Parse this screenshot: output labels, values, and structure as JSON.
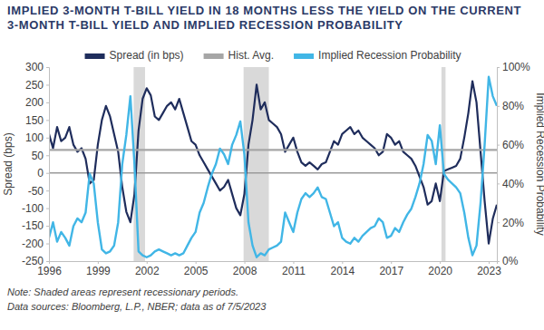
{
  "chart_data": {
    "type": "line",
    "title": "IMPLIED 3-MONTH T-BILL YIELD IN 18 MONTHS LESS THE YIELD ON THE CURRENT 3-MONTH T-BILL YIELD AND IMPLIED RECESSION PROBABILITY",
    "y_label": "Spread (bps)",
    "y2_label": "Implied Recession Probability",
    "notes": [
      "Note: Shaded areas represent recessionary periods.",
      "Data sources: Bloomberg, L.P., NBER; data as of 7/5/2023"
    ],
    "legend": "top",
    "grid": false,
    "x": [
      1996,
      1996.25,
      1996.5,
      1996.75,
      1997,
      1997.25,
      1997.5,
      1997.75,
      1998,
      1998.25,
      1998.5,
      1998.75,
      1999,
      1999.25,
      1999.5,
      1999.75,
      2000,
      2000.25,
      2000.5,
      2000.75,
      2001,
      2001.25,
      2001.5,
      2001.75,
      2002,
      2002.25,
      2002.5,
      2002.75,
      2003,
      2003.25,
      2003.5,
      2003.75,
      2004,
      2004.25,
      2004.5,
      2004.75,
      2005,
      2005.25,
      2005.5,
      2005.75,
      2006,
      2006.25,
      2006.5,
      2006.75,
      2007,
      2007.25,
      2007.5,
      2007.75,
      2008,
      2008.25,
      2008.5,
      2008.75,
      2009,
      2009.25,
      2009.5,
      2009.75,
      2010,
      2010.25,
      2010.5,
      2010.75,
      2011,
      2011.25,
      2011.5,
      2011.75,
      2012,
      2012.25,
      2012.5,
      2012.75,
      2013,
      2013.25,
      2013.5,
      2013.75,
      2014,
      2014.25,
      2014.5,
      2014.75,
      2015,
      2015.25,
      2015.5,
      2015.75,
      2016,
      2016.25,
      2016.5,
      2016.75,
      2017,
      2017.25,
      2017.5,
      2017.75,
      2018,
      2018.25,
      2018.5,
      2018.75,
      2019,
      2019.25,
      2019.5,
      2019.75,
      2020,
      2020.25,
      2020.5,
      2020.75,
      2021,
      2021.25,
      2021.5,
      2021.75,
      2022,
      2022.25,
      2022.5,
      2022.75,
      2023,
      2023.25,
      2023.5
    ],
    "xlim": [
      1996,
      2023.5
    ],
    "xticks": [
      1996,
      1999,
      2002,
      2005,
      2008,
      2011,
      2014,
      2017,
      2020,
      2023
    ],
    "ylim": [
      -250,
      300
    ],
    "yticks": [
      -250,
      -200,
      -150,
      -100,
      -50,
      0,
      50,
      100,
      150,
      200,
      250,
      300
    ],
    "y2lim": [
      0,
      100
    ],
    "y2ticks": [
      {
        "value": 0,
        "label": "0%"
      },
      {
        "value": 20,
        "label": "20%"
      },
      {
        "value": 40,
        "label": "40%"
      },
      {
        "value": 60,
        "label": "60%"
      },
      {
        "value": 80,
        "label": "80%"
      },
      {
        "value": 100,
        "label": "100%"
      }
    ],
    "recessions": [
      [
        2001.2,
        2001.9
      ],
      [
        2007.95,
        2009.5
      ],
      [
        2020.1,
        2020.35
      ]
    ],
    "series": [
      {
        "name": "Spread (in bps)",
        "color": "#1f2d5c",
        "values": [
          110,
          70,
          130,
          90,
          100,
          130,
          80,
          60,
          70,
          40,
          -30,
          -20,
          80,
          150,
          190,
          160,
          110,
          60,
          -40,
          -110,
          -140,
          -60,
          120,
          210,
          240,
          220,
          160,
          150,
          170,
          190,
          200,
          180,
          210,
          170,
          130,
          90,
          80,
          50,
          30,
          10,
          -10,
          -30,
          -50,
          -40,
          -20,
          -60,
          -100,
          -120,
          -60,
          80,
          150,
          250,
          180,
          200,
          150,
          140,
          130,
          110,
          60,
          80,
          100,
          60,
          30,
          20,
          30,
          20,
          10,
          25,
          30,
          60,
          90,
          80,
          110,
          120,
          130,
          110,
          120,
          100,
          90,
          80,
          70,
          50,
          60,
          110,
          100,
          80,
          90,
          60,
          50,
          40,
          20,
          -10,
          -40,
          -90,
          -80,
          -30,
          -80,
          5,
          10,
          15,
          20,
          40,
          100,
          170,
          260,
          200,
          60,
          -80,
          -200,
          -130,
          -90
        ]
      },
      {
        "name": "Hist. Avg.",
        "color": "#a6a6a6",
        "x": [
          1996,
          2023.5
        ],
        "values": [
          65,
          65
        ]
      },
      {
        "name": "Implied Recession Probability",
        "color": "#41b6e6",
        "axis": "y2",
        "values": [
          12,
          20,
          10,
          15,
          12,
          8,
          18,
          22,
          20,
          25,
          45,
          40,
          20,
          6,
          4,
          5,
          8,
          20,
          50,
          65,
          85,
          50,
          5,
          3,
          2,
          3,
          5,
          6,
          5,
          4,
          3,
          4,
          3,
          4,
          8,
          12,
          15,
          25,
          30,
          38,
          45,
          50,
          58,
          55,
          50,
          60,
          65,
          72,
          55,
          20,
          8,
          2,
          4,
          3,
          6,
          7,
          8,
          10,
          25,
          20,
          15,
          25,
          32,
          35,
          33,
          35,
          38,
          33,
          32,
          25,
          18,
          20,
          12,
          10,
          9,
          12,
          10,
          13,
          15,
          17,
          18,
          22,
          20,
          12,
          13,
          17,
          15,
          20,
          24,
          27,
          33,
          40,
          50,
          65,
          62,
          50,
          70,
          45,
          42,
          40,
          38,
          35,
          25,
          12,
          3,
          8,
          30,
          60,
          95,
          85,
          80
        ]
      }
    ]
  }
}
